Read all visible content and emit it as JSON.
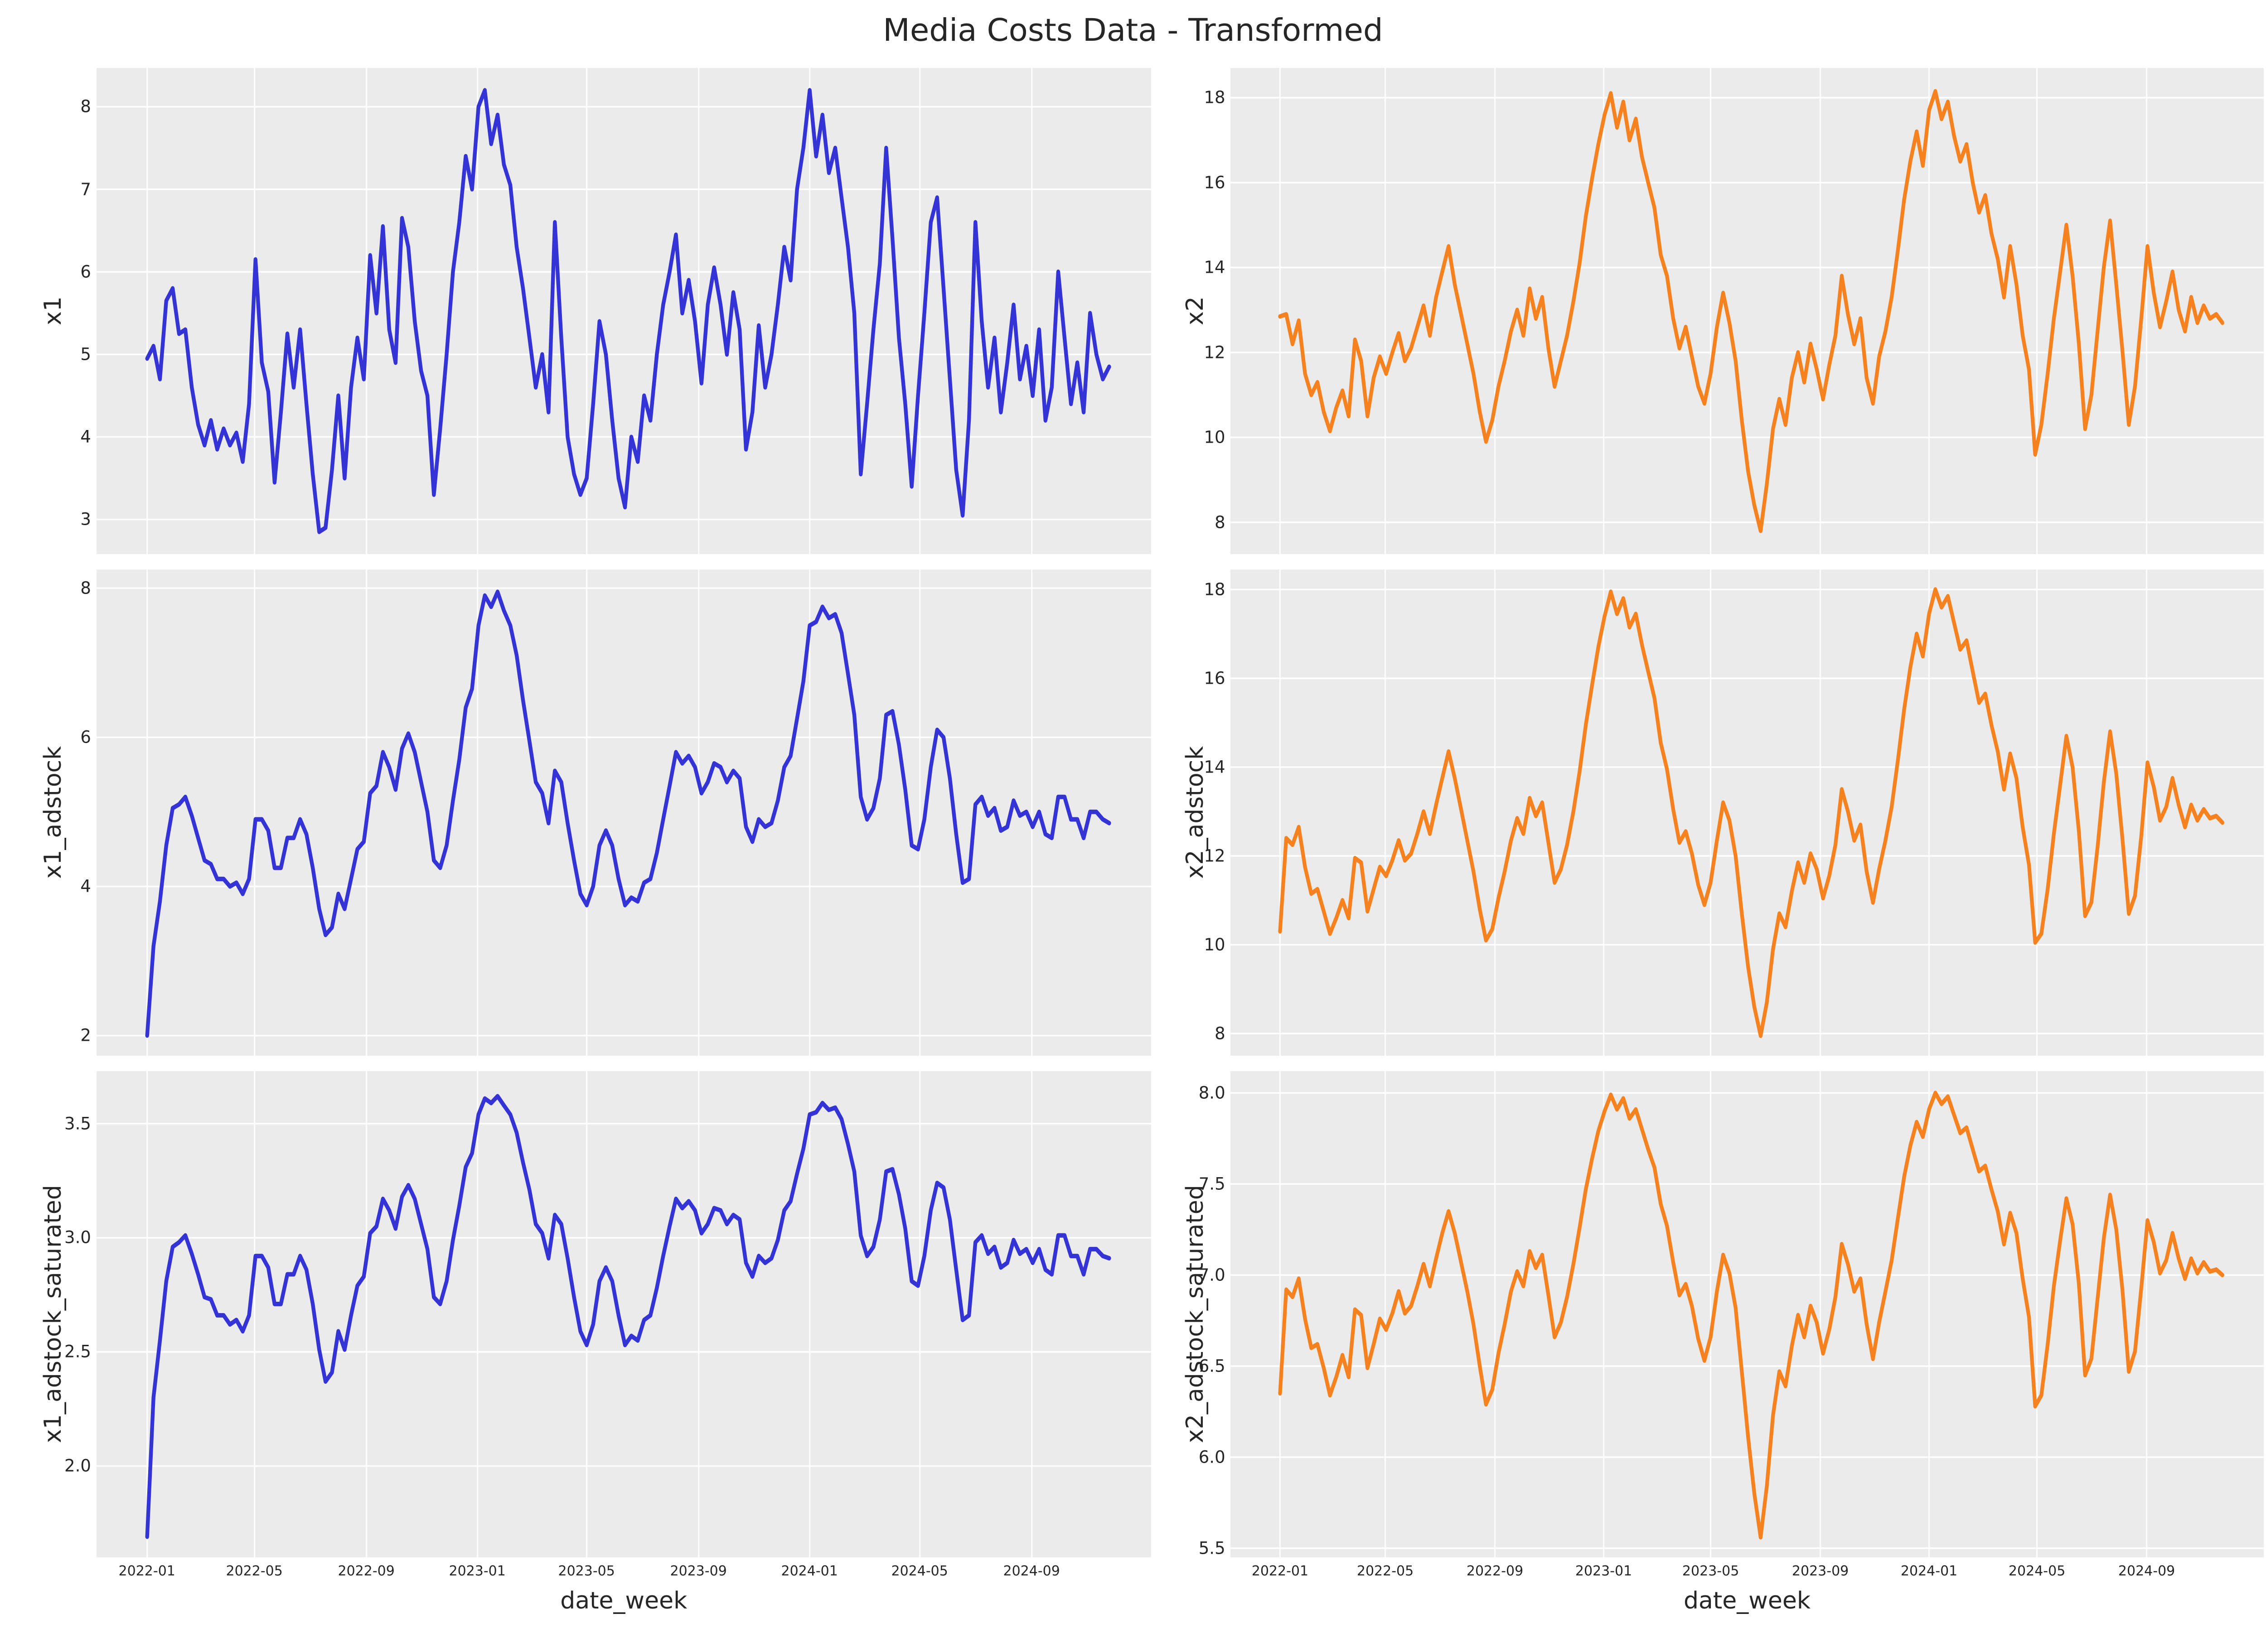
{
  "title": "Media Costs Data - Transformed",
  "style": {
    "page_bg": "#ffffff",
    "panel_bg": "#ebebeb",
    "grid_color": "#ffffff",
    "text_color": "#262626",
    "line_blue": "#3333d6",
    "line_orange": "#f6821f"
  },
  "x_axis": {
    "label": "date_week",
    "tick_labels": [
      "2022-01",
      "2022-05",
      "2022-09",
      "2023-01",
      "2023-05",
      "2023-09",
      "2024-01",
      "2024-05",
      "2024-09"
    ],
    "tick_day_offsets": [
      0,
      118,
      241,
      363,
      483,
      606,
      728,
      849,
      972
    ],
    "start_date": "2022-01-03",
    "frequency": "weekly",
    "n_points": 152,
    "span_days": 1057
  },
  "chart_data": [
    {
      "id": "x1",
      "type": "line",
      "ylabel": "x1",
      "xlabel": "",
      "color": "#3333d6",
      "yticks": [
        3,
        4,
        5,
        6,
        7,
        8
      ],
      "ytick_labels": [
        "3",
        "4",
        "5",
        "6",
        "7",
        "8"
      ],
      "ylim": [
        2.58,
        8.47
      ],
      "values": [
        4.95,
        5.1,
        4.7,
        5.65,
        5.8,
        5.25,
        5.3,
        4.6,
        4.15,
        3.9,
        4.2,
        3.85,
        4.1,
        3.9,
        4.05,
        3.7,
        4.4,
        6.15,
        4.9,
        4.55,
        3.45,
        4.3,
        5.25,
        4.6,
        5.3,
        4.4,
        3.55,
        2.85,
        2.9,
        3.6,
        4.5,
        3.5,
        4.6,
        5.2,
        4.7,
        6.2,
        5.5,
        6.55,
        5.3,
        4.9,
        6.65,
        6.3,
        5.4,
        4.8,
        4.5,
        3.3,
        4.1,
        5.0,
        6.0,
        6.6,
        7.4,
        7.0,
        8.0,
        8.2,
        7.55,
        7.9,
        7.3,
        7.05,
        6.3,
        5.8,
        5.2,
        4.6,
        5.0,
        4.3,
        6.6,
        5.2,
        4.0,
        3.55,
        3.3,
        3.5,
        4.4,
        5.4,
        5.0,
        4.2,
        3.5,
        3.15,
        4.0,
        3.7,
        4.5,
        4.2,
        5.0,
        5.6,
        6.0,
        6.45,
        5.5,
        5.9,
        5.4,
        4.65,
        5.6,
        6.05,
        5.6,
        5.0,
        5.75,
        5.3,
        3.85,
        4.3,
        5.35,
        4.6,
        5.0,
        5.6,
        6.3,
        5.9,
        7.0,
        7.5,
        8.2,
        7.4,
        7.9,
        7.2,
        7.5,
        6.9,
        6.3,
        5.5,
        3.55,
        4.4,
        5.3,
        6.1,
        7.5,
        6.4,
        5.2,
        4.4,
        3.4,
        4.5,
        5.5,
        6.6,
        6.9,
        5.8,
        4.7,
        3.6,
        3.05,
        4.2,
        6.6,
        5.4,
        4.6,
        5.2,
        4.3,
        4.9,
        5.6,
        4.7,
        5.1,
        4.5,
        5.3,
        4.2,
        4.6,
        6.0,
        5.2,
        4.4,
        4.9,
        4.3,
        5.5,
        5.0,
        4.7,
        4.85
      ]
    },
    {
      "id": "x2",
      "type": "line",
      "ylabel": "x2",
      "xlabel": "",
      "color": "#f6821f",
      "yticks": [
        8,
        10,
        12,
        14,
        16,
        18
      ],
      "ytick_labels": [
        "8",
        "10",
        "12",
        "14",
        "16",
        "18"
      ],
      "ylim": [
        7.25,
        18.7
      ],
      "values": [
        12.85,
        12.9,
        12.2,
        12.75,
        11.5,
        11.0,
        11.3,
        10.6,
        10.15,
        10.7,
        11.1,
        10.5,
        12.3,
        11.8,
        10.5,
        11.4,
        11.9,
        11.5,
        12.0,
        12.45,
        11.8,
        12.1,
        12.6,
        13.1,
        12.4,
        13.3,
        13.9,
        14.5,
        13.6,
        12.9,
        12.2,
        11.5,
        10.6,
        9.9,
        10.4,
        11.2,
        11.8,
        12.5,
        13.0,
        12.4,
        13.5,
        12.8,
        13.3,
        12.1,
        11.2,
        11.8,
        12.4,
        13.2,
        14.1,
        15.2,
        16.1,
        16.9,
        17.6,
        18.1,
        17.3,
        17.9,
        17.0,
        17.5,
        16.6,
        16.0,
        15.4,
        14.3,
        13.8,
        12.8,
        12.1,
        12.6,
        11.9,
        11.2,
        10.8,
        11.5,
        12.6,
        13.4,
        12.7,
        11.8,
        10.4,
        9.2,
        8.4,
        7.8,
        8.9,
        10.2,
        10.9,
        10.3,
        11.4,
        12.0,
        11.3,
        12.2,
        11.6,
        10.9,
        11.7,
        12.4,
        13.8,
        12.9,
        12.2,
        12.8,
        11.4,
        10.8,
        11.9,
        12.5,
        13.3,
        14.4,
        15.6,
        16.5,
        17.2,
        16.4,
        17.7,
        18.15,
        17.5,
        17.9,
        17.1,
        16.5,
        16.9,
        16.0,
        15.3,
        15.7,
        14.8,
        14.2,
        13.3,
        14.5,
        13.6,
        12.4,
        11.6,
        9.6,
        10.3,
        11.5,
        12.8,
        13.9,
        15.0,
        13.8,
        12.2,
        10.2,
        11.0,
        12.5,
        14.0,
        15.1,
        13.6,
        12.0,
        10.3,
        11.2,
        12.8,
        14.5,
        13.4,
        12.6,
        13.2,
        13.9,
        13.0,
        12.5,
        13.3,
        12.7,
        13.1,
        12.8,
        12.9,
        12.7
      ]
    },
    {
      "id": "x1_adstock",
      "type": "line",
      "ylabel": "x1_adstock",
      "xlabel": "",
      "color": "#3333d6",
      "yticks": [
        2,
        4,
        6,
        8
      ],
      "ytick_labels": [
        "2",
        "4",
        "6",
        "8"
      ],
      "ylim": [
        1.73,
        8.25
      ],
      "values": [
        2.0,
        3.2,
        3.8,
        4.55,
        5.05,
        5.1,
        5.2,
        4.95,
        4.65,
        4.35,
        4.3,
        4.1,
        4.1,
        4.0,
        4.05,
        3.9,
        4.1,
        4.9,
        4.9,
        4.75,
        4.25,
        4.25,
        4.65,
        4.65,
        4.9,
        4.7,
        4.25,
        3.7,
        3.35,
        3.45,
        3.9,
        3.7,
        4.1,
        4.5,
        4.6,
        5.25,
        5.35,
        5.8,
        5.6,
        5.3,
        5.85,
        6.05,
        5.8,
        5.4,
        5.0,
        4.35,
        4.25,
        4.55,
        5.15,
        5.7,
        6.4,
        6.65,
        7.5,
        7.9,
        7.75,
        7.95,
        7.7,
        7.5,
        7.1,
        6.5,
        5.95,
        5.4,
        5.25,
        4.85,
        5.55,
        5.4,
        4.85,
        4.35,
        3.9,
        3.75,
        4.0,
        4.55,
        4.75,
        4.55,
        4.1,
        3.75,
        3.85,
        3.8,
        4.05,
        4.1,
        4.45,
        4.9,
        5.35,
        5.8,
        5.65,
        5.75,
        5.6,
        5.25,
        5.4,
        5.65,
        5.6,
        5.4,
        5.55,
        5.45,
        4.8,
        4.6,
        4.9,
        4.8,
        4.85,
        5.15,
        5.6,
        5.75,
        6.25,
        6.75,
        7.5,
        7.55,
        7.75,
        7.6,
        7.65,
        7.4,
        6.85,
        6.3,
        5.2,
        4.9,
        5.05,
        5.45,
        6.3,
        6.35,
        5.9,
        5.3,
        4.55,
        4.5,
        4.9,
        5.6,
        6.1,
        6.0,
        5.45,
        4.7,
        4.05,
        4.1,
        5.1,
        5.2,
        4.95,
        5.05,
        4.75,
        4.8,
        5.15,
        4.95,
        5.0,
        4.8,
        5.0,
        4.7,
        4.65,
        5.2,
        5.2,
        4.9,
        4.9,
        4.65,
        5.0,
        5.0,
        4.9,
        4.85
      ]
    },
    {
      "id": "x2_adstock",
      "type": "line",
      "ylabel": "x2_adstock",
      "xlabel": "",
      "color": "#f6821f",
      "yticks": [
        8,
        10,
        12,
        14,
        16,
        18
      ],
      "ytick_labels": [
        "8",
        "10",
        "12",
        "14",
        "16",
        "18"
      ],
      "ylim": [
        7.5,
        18.45
      ],
      "values": [
        10.3,
        12.4,
        12.25,
        12.65,
        11.75,
        11.15,
        11.25,
        10.75,
        10.25,
        10.6,
        11.0,
        10.6,
        11.95,
        11.85,
        10.75,
        11.25,
        11.75,
        11.55,
        11.9,
        12.35,
        11.9,
        12.05,
        12.5,
        13.0,
        12.5,
        13.15,
        13.75,
        14.35,
        13.75,
        13.05,
        12.35,
        11.65,
        10.8,
        10.1,
        10.35,
        11.05,
        11.65,
        12.35,
        12.85,
        12.5,
        13.3,
        12.9,
        13.2,
        12.3,
        11.4,
        11.7,
        12.25,
        13.0,
        13.9,
        14.95,
        15.85,
        16.7,
        17.4,
        17.95,
        17.45,
        17.8,
        17.15,
        17.45,
        16.75,
        16.15,
        15.55,
        14.55,
        13.95,
        13.05,
        12.3,
        12.55,
        12.05,
        11.35,
        10.9,
        11.4,
        12.35,
        13.2,
        12.8,
        12.0,
        10.7,
        9.5,
        8.6,
        7.95,
        8.7,
        9.9,
        10.7,
        10.4,
        11.2,
        11.85,
        11.4,
        12.05,
        11.7,
        11.05,
        11.55,
        12.25,
        13.5,
        13.0,
        12.35,
        12.7,
        11.65,
        10.95,
        11.7,
        12.35,
        13.1,
        14.15,
        15.3,
        16.25,
        17.0,
        16.5,
        17.45,
        18.0,
        17.6,
        17.85,
        17.25,
        16.65,
        16.85,
        16.15,
        15.45,
        15.65,
        14.95,
        14.35,
        13.5,
        14.3,
        13.75,
        12.65,
        11.8,
        10.05,
        10.25,
        11.25,
        12.5,
        13.6,
        14.7,
        14.0,
        12.55,
        10.65,
        10.95,
        12.2,
        13.65,
        14.8,
        13.85,
        12.35,
        10.7,
        11.1,
        12.45,
        14.1,
        13.55,
        12.8,
        13.1,
        13.75,
        13.15,
        12.65,
        13.15,
        12.8,
        13.05,
        12.85,
        12.9,
        12.75
      ]
    },
    {
      "id": "x1_adstock_saturated",
      "type": "line",
      "ylabel": "x1_adstock_saturated",
      "xlabel": "date_week",
      "color": "#3333d6",
      "yticks": [
        2.0,
        2.5,
        3.0,
        3.5
      ],
      "ytick_labels": [
        "2.0",
        "2.5",
        "3.0",
        "3.5"
      ],
      "ylim": [
        1.6,
        3.73
      ],
      "values": [
        1.69,
        2.3,
        2.55,
        2.81,
        2.96,
        2.98,
        3.01,
        2.93,
        2.84,
        2.74,
        2.73,
        2.66,
        2.66,
        2.62,
        2.64,
        2.59,
        2.66,
        2.92,
        2.92,
        2.87,
        2.71,
        2.71,
        2.84,
        2.84,
        2.92,
        2.86,
        2.71,
        2.51,
        2.37,
        2.41,
        2.59,
        2.51,
        2.66,
        2.79,
        2.83,
        3.02,
        3.05,
        3.17,
        3.12,
        3.04,
        3.18,
        3.23,
        3.17,
        3.06,
        2.95,
        2.74,
        2.71,
        2.81,
        2.99,
        3.14,
        3.31,
        3.37,
        3.54,
        3.61,
        3.59,
        3.62,
        3.58,
        3.54,
        3.46,
        3.33,
        3.21,
        3.06,
        3.02,
        2.91,
        3.1,
        3.06,
        2.91,
        2.74,
        2.59,
        2.53,
        2.62,
        2.81,
        2.87,
        2.81,
        2.66,
        2.53,
        2.57,
        2.55,
        2.64,
        2.66,
        2.78,
        2.92,
        3.05,
        3.17,
        3.13,
        3.16,
        3.12,
        3.02,
        3.06,
        3.13,
        3.12,
        3.06,
        3.1,
        3.08,
        2.89,
        2.83,
        2.92,
        2.89,
        2.91,
        2.99,
        3.12,
        3.16,
        3.28,
        3.39,
        3.54,
        3.55,
        3.59,
        3.56,
        3.57,
        3.52,
        3.41,
        3.29,
        3.01,
        2.92,
        2.96,
        3.08,
        3.29,
        3.3,
        3.19,
        3.04,
        2.81,
        2.79,
        2.92,
        3.12,
        3.24,
        3.22,
        3.08,
        2.86,
        2.64,
        2.66,
        2.98,
        3.01,
        2.93,
        2.96,
        2.87,
        2.89,
        2.99,
        2.93,
        2.95,
        2.89,
        2.95,
        2.86,
        2.84,
        3.01,
        3.01,
        2.92,
        2.92,
        2.84,
        2.95,
        2.95,
        2.92,
        2.91
      ]
    },
    {
      "id": "x2_adstock_saturated",
      "type": "line",
      "ylabel": "x2_adstock_saturated",
      "xlabel": "date_week",
      "color": "#f6821f",
      "yticks": [
        5.5,
        6.0,
        6.5,
        7.0,
        7.5,
        8.0
      ],
      "ytick_labels": [
        "5.5",
        "6.0",
        "6.5",
        "7.0",
        "7.5",
        "8.0"
      ],
      "ylim": [
        5.45,
        8.12
      ],
      "values": [
        6.35,
        6.92,
        6.88,
        6.98,
        6.76,
        6.6,
        6.62,
        6.49,
        6.34,
        6.44,
        6.56,
        6.44,
        6.81,
        6.78,
        6.49,
        6.62,
        6.76,
        6.7,
        6.79,
        6.91,
        6.79,
        6.83,
        6.94,
        7.06,
        6.94,
        7.09,
        7.23,
        7.35,
        7.23,
        7.07,
        6.91,
        6.73,
        6.5,
        6.29,
        6.37,
        6.57,
        6.73,
        6.91,
        7.02,
        6.94,
        7.13,
        7.04,
        7.11,
        6.89,
        6.66,
        6.74,
        6.88,
        7.06,
        7.26,
        7.47,
        7.64,
        7.79,
        7.9,
        7.99,
        7.91,
        7.97,
        7.86,
        7.91,
        7.8,
        7.69,
        7.59,
        7.39,
        7.27,
        7.07,
        6.89,
        6.95,
        6.83,
        6.65,
        6.53,
        6.66,
        6.91,
        7.11,
        7.01,
        6.82,
        6.47,
        6.11,
        5.8,
        5.56,
        5.84,
        6.23,
        6.47,
        6.39,
        6.61,
        6.78,
        6.66,
        6.83,
        6.74,
        6.57,
        6.7,
        6.88,
        7.17,
        7.06,
        6.91,
        6.98,
        6.73,
        6.54,
        6.74,
        6.91,
        7.08,
        7.31,
        7.54,
        7.71,
        7.84,
        7.76,
        7.91,
        8.0,
        7.94,
        7.98,
        7.88,
        7.78,
        7.81,
        7.69,
        7.57,
        7.6,
        7.47,
        7.35,
        7.17,
        7.34,
        7.23,
        6.98,
        6.77,
        6.28,
        6.34,
        6.62,
        6.94,
        7.19,
        7.42,
        7.28,
        6.95,
        6.45,
        6.54,
        6.87,
        7.2,
        7.44,
        7.25,
        6.91,
        6.47,
        6.58,
        6.93,
        7.3,
        7.18,
        7.01,
        7.08,
        7.23,
        7.09,
        6.98,
        7.09,
        7.01,
        7.07,
        7.02,
        7.03,
        7.0
      ]
    }
  ]
}
